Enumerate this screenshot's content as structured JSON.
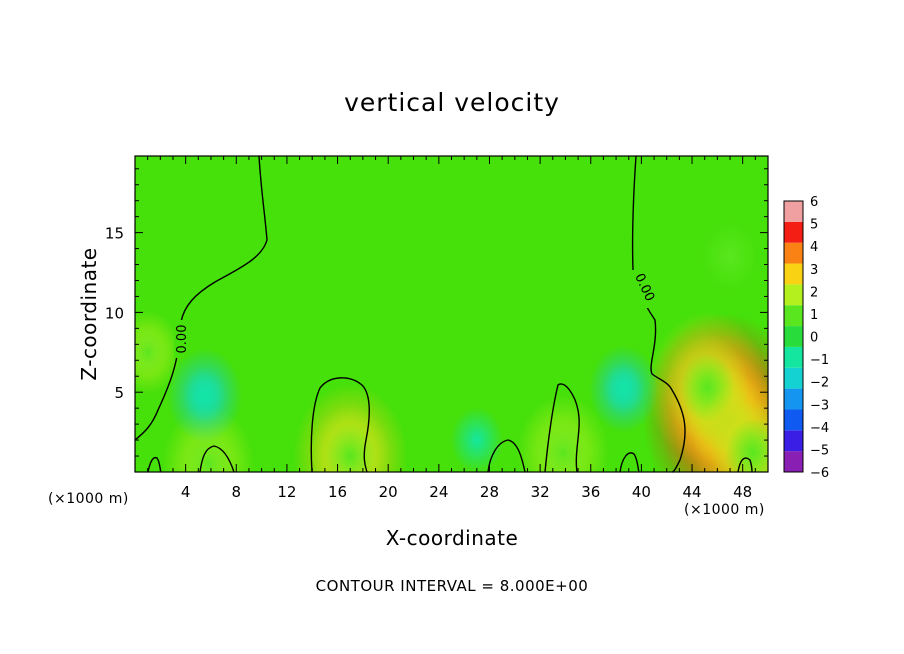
{
  "chart_data": {
    "type": "heatmap",
    "title": "vertical velocity",
    "xlabel": "X-coordinate",
    "ylabel": "Z-coordinate",
    "x_unit": "(×1000 m)",
    "x_unit_right": "(×1000 m)",
    "x_ticks": [
      "4",
      "8",
      "12",
      "16",
      "20",
      "24",
      "28",
      "32",
      "36",
      "40",
      "44",
      "48"
    ],
    "y_ticks": [
      "5",
      "10",
      "15"
    ],
    "xlim": [
      0,
      50
    ],
    "ylim": [
      0,
      19.8
    ],
    "colorbar": {
      "values": [
        -6,
        -5,
        -4,
        -3,
        -2,
        -1,
        0,
        1,
        2,
        3,
        4,
        5,
        6
      ],
      "labels": [
        "−6",
        "−5",
        "−4",
        "−3",
        "−2",
        "−1",
        "0",
        "1",
        "2",
        "3",
        "4",
        "5",
        "6"
      ],
      "colors": [
        "#8a1fb4",
        "#3a1ee6",
        "#0f5af0",
        "#1496f0",
        "#14d2d2",
        "#14e6a0",
        "#28dc3c",
        "#5ae61e",
        "#b4f01e",
        "#fad214",
        "#fa8214",
        "#f51e14",
        "#f0a0a0"
      ]
    },
    "contour_label": "0.00",
    "contour_interval_text": "CONTOUR INTERVAL = 8.000E+00",
    "features": [
      {
        "x": 46.5,
        "z": 3.5,
        "w": 4.5
      },
      {
        "x": 45.2,
        "z": 5.3,
        "w": 3.0
      },
      {
        "x": 48.8,
        "z": 1.2,
        "w": 3.0
      },
      {
        "x": 17.0,
        "z": 1.0,
        "w": 2.8
      },
      {
        "x": 33.8,
        "z": 1.2,
        "w": 2.0
      },
      {
        "x": 5.8,
        "z": 0.5,
        "w": 2.0
      },
      {
        "x": 5.5,
        "z": 4.8,
        "w": -1.4
      },
      {
        "x": 38.6,
        "z": 5.2,
        "w": -1.2
      },
      {
        "x": 27.0,
        "z": 2.0,
        "w": -0.6
      },
      {
        "x": 1.0,
        "z": 7.5,
        "w": 1.1
      },
      {
        "x": 47.0,
        "z": 13.5,
        "w": 0.7
      }
    ]
  }
}
